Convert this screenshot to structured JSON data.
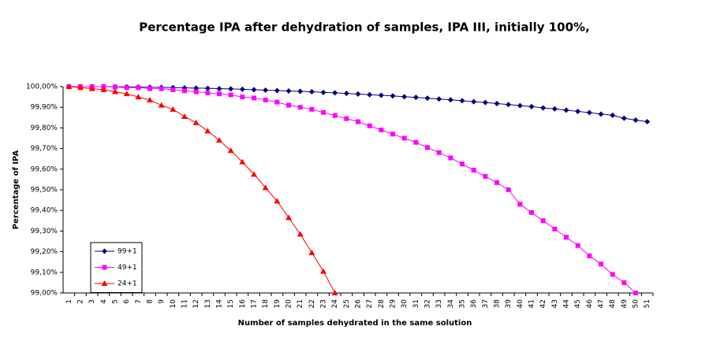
{
  "chart_data": {
    "type": "line",
    "title": "Percentage IPA after dehydration of samples, IPA III, initially 100%,",
    "x_label": "Number of samples dehydrated in the same solution",
    "y_label": "Percentage of IPA",
    "categories": [
      "1",
      "2",
      "3",
      "4",
      "5",
      "6",
      "7",
      "8",
      "9",
      "10",
      "11",
      "12",
      "13",
      "14",
      "15",
      "16",
      "17",
      "18",
      "19",
      "20",
      "21",
      "22",
      "23",
      "24",
      "25",
      "26",
      "27",
      "28",
      "29",
      "30",
      "31",
      "32",
      "33",
      "34",
      "35",
      "36",
      "37",
      "38",
      "39",
      "40",
      "41",
      "42",
      "43",
      "44",
      "45",
      "46",
      "47",
      "48",
      "49",
      "50",
      "51"
    ],
    "ylim": [
      99,
      100
    ],
    "yticks": [
      {
        "value": 99,
        "label": "99,00%"
      },
      {
        "value": 99.1,
        "label": "99,10%"
      },
      {
        "value": 99.2,
        "label": "99,20%"
      },
      {
        "value": 99.3,
        "label": "99,30%"
      },
      {
        "value": 99.4,
        "label": "99,40%"
      },
      {
        "value": 99.5,
        "label": "99,50%"
      },
      {
        "value": 99.6,
        "label": "99,60%"
      },
      {
        "value": 99.7,
        "label": "99,70%"
      },
      {
        "value": 99.8,
        "label": "99,80%"
      },
      {
        "value": 99.9,
        "label": "99,90%"
      },
      {
        "value": 100,
        "label": "100,00%"
      }
    ],
    "grid": false,
    "legend": "lower left",
    "series": [
      {
        "name": "99+1",
        "color": "#000080",
        "marker": "diamond",
        "values": [
          100,
          100,
          100,
          100,
          99.999,
          99.999,
          99.998,
          99.997,
          99.996,
          99.995,
          99.994,
          99.993,
          99.992,
          99.99,
          99.989,
          99.987,
          99.985,
          99.983,
          99.981,
          99.979,
          99.977,
          99.975,
          99.972,
          99.97,
          99.967,
          99.964,
          99.961,
          99.958,
          99.955,
          99.951,
          99.948,
          99.944,
          99.94,
          99.936,
          99.932,
          99.927,
          99.923,
          99.918,
          99.913,
          99.908,
          99.903,
          99.897,
          99.892,
          99.886,
          99.88,
          99.874,
          99.867,
          99.861,
          99.847,
          99.838,
          99.83
        ]
      },
      {
        "name": "49+1",
        "color": "#ff00ff",
        "marker": "square",
        "values": [
          100,
          100,
          100,
          100,
          99.998,
          99.995,
          99.995,
          99.99,
          99.99,
          99.985,
          99.98,
          99.975,
          99.97,
          99.965,
          99.96,
          99.95,
          99.945,
          99.935,
          99.925,
          99.91,
          99.9,
          99.89,
          99.875,
          99.86,
          99.845,
          99.83,
          99.81,
          99.79,
          99.77,
          99.75,
          99.73,
          99.705,
          99.68,
          99.655,
          99.625,
          99.595,
          99.565,
          99.535,
          99.5,
          99.43,
          99.39,
          99.35,
          99.31,
          99.27,
          99.23,
          99.18,
          99.14,
          99.09,
          99.05,
          99.0,
          null
        ]
      },
      {
        "name": "24+1",
        "color": "#ff0000",
        "marker": "triangle",
        "values": [
          100,
          99.995,
          99.99,
          99.985,
          99.975,
          99.965,
          99.95,
          99.935,
          99.91,
          99.89,
          99.855,
          99.825,
          99.785,
          99.74,
          99.69,
          99.635,
          99.575,
          99.51,
          99.445,
          99.365,
          99.285,
          99.195,
          99.105,
          99.0,
          null,
          null,
          null,
          null,
          null,
          null,
          null,
          null,
          null,
          null,
          null,
          null,
          null,
          null,
          null,
          null,
          null,
          null,
          null,
          null,
          null,
          null,
          null,
          null,
          null,
          null,
          null
        ]
      }
    ]
  }
}
